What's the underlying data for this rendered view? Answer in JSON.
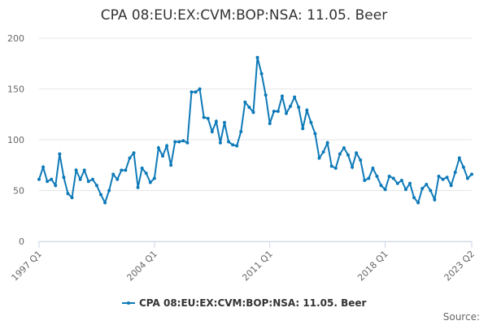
{
  "chart_data": {
    "type": "line",
    "title": "CPA 08:EU:EX:CVM:BOP:NSA: 11.05. Beer",
    "categories": [
      "1997 Q1",
      null,
      null,
      null,
      null,
      null,
      null,
      null,
      null,
      null,
      null,
      null,
      null,
      null,
      null,
      null,
      null,
      null,
      null,
      null,
      null,
      null,
      null,
      null,
      null,
      null,
      null,
      null,
      "2004 Q1",
      null,
      null,
      null,
      null,
      null,
      null,
      null,
      null,
      null,
      null,
      null,
      null,
      null,
      null,
      null,
      null,
      null,
      null,
      null,
      null,
      null,
      null,
      null,
      null,
      null,
      null,
      null,
      "2011 Q1",
      null,
      null,
      null,
      null,
      null,
      null,
      null,
      null,
      null,
      null,
      null,
      null,
      null,
      null,
      null,
      null,
      null,
      null,
      null,
      null,
      null,
      null,
      null,
      null,
      null,
      null,
      null,
      "2018 Q1",
      null,
      null,
      null,
      null,
      null,
      null,
      null,
      null,
      null,
      null,
      null,
      null,
      null,
      null,
      null,
      null,
      null,
      null,
      null,
      null,
      "2023 Q2"
    ],
    "series": [
      {
        "name": "CPA 08:EU:EX:CVM:BOP:NSA: 11.05. Beer",
        "color": "#0e7ab8",
        "values": [
          61,
          73,
          59,
          61,
          55,
          86,
          63,
          47,
          43,
          70,
          61,
          70,
          59,
          61,
          55,
          46,
          38,
          50,
          66,
          61,
          70,
          70,
          82,
          87,
          53,
          72,
          67,
          58,
          62,
          92,
          84,
          94,
          75,
          98,
          98,
          99,
          97,
          147,
          147,
          150,
          122,
          121,
          108,
          118,
          97,
          117,
          98,
          95,
          94,
          108,
          137,
          132,
          127,
          181,
          165,
          144,
          116,
          128,
          128,
          143,
          126,
          133,
          142,
          132,
          111,
          129,
          117,
          106,
          82,
          88,
          97,
          74,
          72,
          86,
          92,
          85,
          73,
          87,
          80,
          60,
          62,
          72,
          64,
          55,
          51,
          64,
          62,
          57,
          60,
          51,
          57,
          43,
          38,
          52,
          56,
          50,
          41,
          64,
          61,
          63,
          55,
          68,
          82,
          73,
          62,
          66
        ]
      }
    ],
    "ylim": [
      0,
      200
    ],
    "yticks": [
      0,
      50,
      100,
      150,
      200
    ],
    "grid": true,
    "legend": "bottom",
    "source": "Source:"
  }
}
